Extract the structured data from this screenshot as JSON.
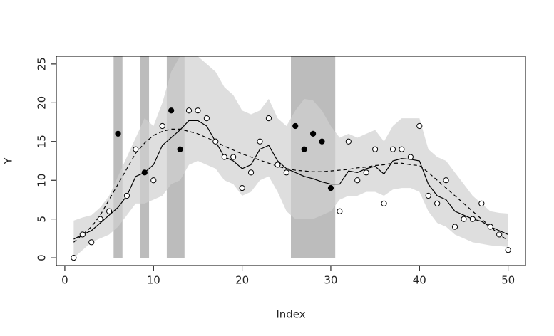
{
  "chart_data": {
    "type": "scatter",
    "xlabel": "Index",
    "ylabel": "Y",
    "xlim": [
      -0.96,
      51.96
    ],
    "ylim": [
      -1,
      26
    ],
    "xticks": [
      0,
      10,
      20,
      30,
      40,
      50
    ],
    "yticks": [
      0,
      5,
      10,
      15,
      20,
      25
    ],
    "bands": [
      [
        5.5,
        6.5
      ],
      [
        8.5,
        9.5
      ],
      [
        11.5,
        13.5
      ],
      [
        25.5,
        30.5
      ]
    ],
    "band_color": "#a6a6a6",
    "ribbon": {
      "color": "#d0d0d0",
      "x": [
        1,
        2,
        3,
        4,
        5,
        6,
        7,
        8,
        9,
        10,
        11,
        12,
        13,
        14,
        15,
        16,
        17,
        18,
        19,
        20,
        21,
        22,
        23,
        24,
        25,
        26,
        27,
        28,
        29,
        30,
        31,
        32,
        33,
        34,
        35,
        36,
        37,
        38,
        39,
        40,
        41,
        42,
        43,
        44,
        45,
        46,
        47,
        48,
        49,
        50
      ],
      "lower": [
        0,
        1,
        2,
        2.5,
        3,
        4,
        5.5,
        7,
        7,
        7.5,
        8,
        9.5,
        10,
        12,
        12.5,
        12,
        11.5,
        10,
        9.5,
        8,
        8.5,
        10,
        10.5,
        8.5,
        6,
        5,
        5,
        5,
        5.5,
        6,
        7.5,
        8,
        8,
        8.5,
        8.5,
        8,
        8.8,
        9,
        9,
        8.5,
        6,
        4.5,
        4,
        3,
        2.5,
        2,
        1.8,
        1.6,
        1.5,
        1.4
      ],
      "upper": [
        4.8,
        5.2,
        5.5,
        6.5,
        8,
        10.5,
        13,
        15.5,
        18,
        17,
        20,
        24,
        26,
        26,
        26,
        25,
        24,
        22,
        21,
        19,
        18.5,
        19,
        20.5,
        18,
        17,
        19,
        20.5,
        20.3,
        19,
        17,
        15.5,
        16,
        15.5,
        16,
        16.5,
        15,
        17,
        18,
        18,
        18,
        14,
        13,
        12.5,
        11,
        9.5,
        8,
        7,
        6,
        5.8,
        5.7
      ]
    },
    "lines": [
      {
        "style": "solid",
        "color": "#000000",
        "x": [
          1,
          2,
          3,
          4,
          5,
          6,
          7,
          8,
          9,
          10,
          11,
          12,
          13,
          14,
          15,
          16,
          17,
          18,
          19,
          20,
          21,
          22,
          23,
          24,
          25,
          26,
          27,
          28,
          29,
          30,
          31,
          32,
          33,
          34,
          35,
          36,
          37,
          38,
          39,
          40,
          41,
          42,
          43,
          44,
          45,
          46,
          47,
          48,
          49,
          50
        ],
        "values": [
          2.4,
          3,
          3.5,
          4.5,
          5.5,
          6.5,
          8,
          10.5,
          11,
          12,
          14.5,
          15.5,
          16.5,
          17.7,
          17.7,
          17,
          15,
          13,
          12.5,
          11.5,
          12,
          14,
          14.5,
          12.5,
          11.5,
          11,
          10.5,
          10.2,
          9.8,
          9.5,
          9.5,
          11.2,
          11,
          11.5,
          11.8,
          10.8,
          12.5,
          12.8,
          12.7,
          12.5,
          9.5,
          8,
          7.5,
          6,
          5.5,
          5,
          4.7,
          4,
          3.5,
          3
        ]
      },
      {
        "style": "dashed",
        "color": "#000000",
        "x": [
          1,
          2,
          3,
          4,
          5,
          6,
          7,
          8,
          9,
          10,
          11,
          12,
          13,
          14,
          15,
          16,
          17,
          18,
          19,
          20,
          21,
          22,
          23,
          24,
          25,
          26,
          27,
          28,
          29,
          30,
          31,
          32,
          33,
          34,
          35,
          36,
          37,
          38,
          39,
          40,
          41,
          42,
          43,
          44,
          45,
          46,
          47,
          48,
          49,
          50
        ],
        "values": [
          2,
          3,
          4,
          5.5,
          7.5,
          9.5,
          11.5,
          13.5,
          14.8,
          15.8,
          16.3,
          16.6,
          16.6,
          16.3,
          16,
          15.5,
          15,
          14.4,
          13.9,
          13.4,
          13,
          12.6,
          12.2,
          11.8,
          11.5,
          11.3,
          11.2,
          11.1,
          11.1,
          11.2,
          11.3,
          11.4,
          11.6,
          11.7,
          11.9,
          12,
          12.2,
          12.2,
          12,
          11.9,
          11,
          10,
          9,
          8,
          7,
          6,
          5,
          4,
          3,
          2.2
        ]
      }
    ],
    "series": [
      {
        "marker": "open",
        "color": "#000000",
        "x": [
          1,
          2,
          3,
          4,
          5,
          7,
          8,
          10,
          11,
          14,
          15,
          16,
          17,
          18,
          19,
          20,
          21,
          22,
          23,
          24,
          25,
          31,
          32,
          33,
          34,
          35,
          36,
          37,
          38,
          39,
          40,
          41,
          42,
          43,
          44,
          45,
          46,
          47,
          48,
          49,
          50
        ],
        "values": [
          0,
          3,
          2,
          5,
          6,
          8,
          14,
          10,
          17,
          19,
          19,
          18,
          15,
          13,
          13,
          9,
          11,
          15,
          18,
          12,
          11,
          6,
          15,
          10,
          11,
          14,
          7,
          14,
          14,
          13,
          17,
          8,
          7,
          10,
          4,
          5,
          5,
          7,
          4,
          3,
          1
        ]
      },
      {
        "marker": "filled",
        "color": "#000000",
        "x": [
          6,
          9,
          12,
          13,
          26,
          27,
          28,
          29,
          30
        ],
        "values": [
          16,
          11,
          19,
          14,
          17,
          14,
          16,
          15,
          9
        ]
      }
    ]
  }
}
